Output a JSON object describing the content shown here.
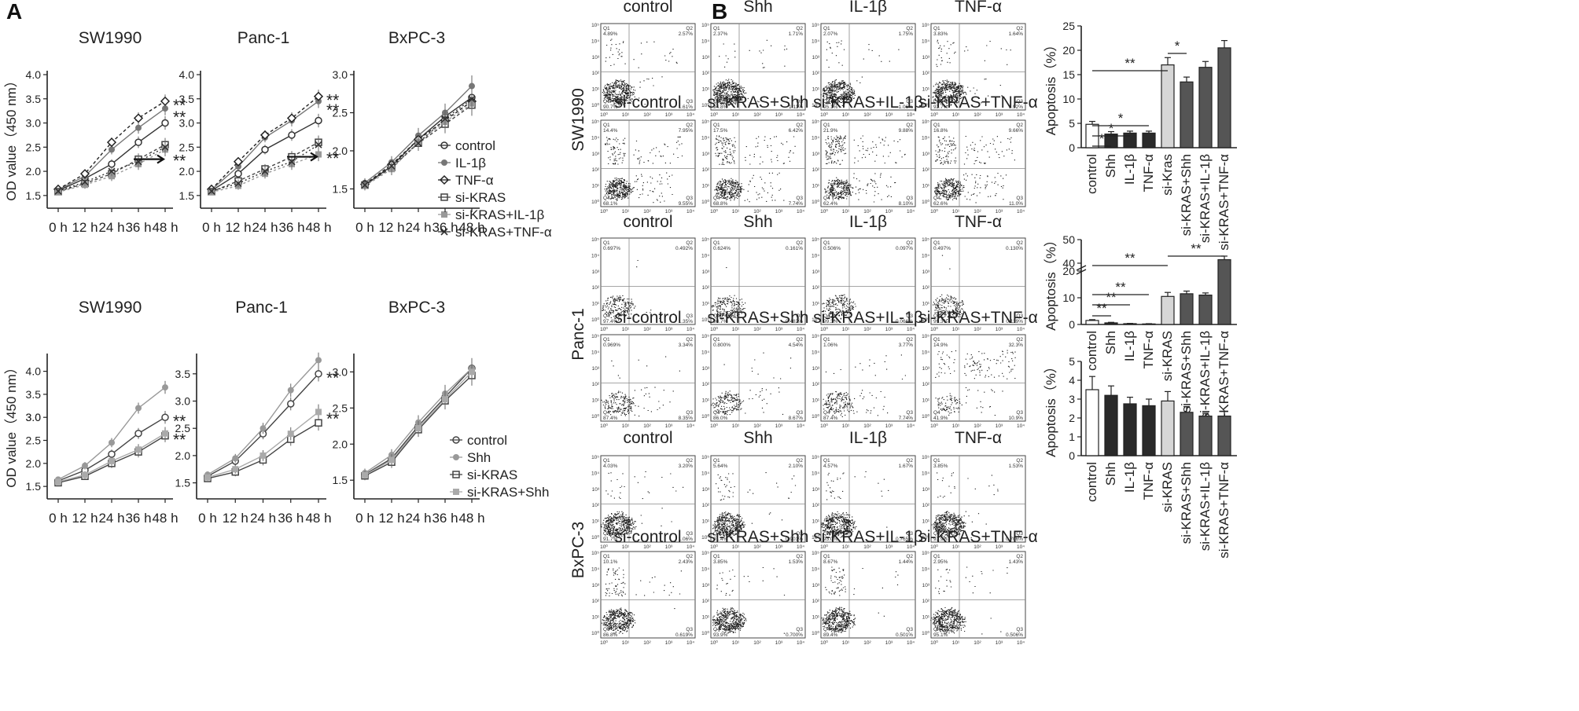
{
  "figure": {
    "panel_a": "A",
    "panel_b": "B"
  },
  "chart_data": [
    {
      "type": "line",
      "id": "a-sw1990-top",
      "title": "SW1990",
      "ylabel": "OD value（450 nm）",
      "yticks": [
        "1.5",
        "2.0",
        "2.5",
        "3.0",
        "3.5",
        "4.0"
      ],
      "ylim": [
        1.4,
        4.0
      ],
      "categories": [
        "0 h",
        "12 h",
        "24 h",
        "36 h",
        "48 h"
      ],
      "series": [
        {
          "name": "control",
          "values": [
            1.6,
            1.85,
            2.15,
            2.6,
            3.0
          ]
        },
        {
          "name": "IL-1β",
          "values": [
            1.62,
            1.9,
            2.45,
            2.9,
            3.3
          ]
        },
        {
          "name": "TNF-α",
          "values": [
            1.63,
            1.95,
            2.6,
            3.1,
            3.45
          ]
        },
        {
          "name": "si-KRAS",
          "values": [
            1.58,
            1.75,
            1.95,
            2.25,
            2.55
          ]
        },
        {
          "name": "si-KRAS+IL-1β",
          "values": [
            1.57,
            1.72,
            1.9,
            2.15,
            2.45
          ]
        },
        {
          "name": "si-KRAS+TNF-α",
          "values": [
            1.59,
            1.78,
            2.0,
            2.2,
            2.5
          ]
        }
      ],
      "annotations": [
        "**",
        "**",
        "**"
      ],
      "legend": [
        "control",
        "IL-1β",
        "TNF-α",
        "si-KRAS",
        "si-KRAS+IL-1β",
        "si-KRAS+TNF-α"
      ]
    },
    {
      "type": "line",
      "id": "a-panc1-top",
      "title": "Panc-1",
      "yticks": [
        "1.5",
        "2.0",
        "2.5",
        "3.0",
        "3.5",
        "4.0"
      ],
      "ylim": [
        1.4,
        4.0
      ],
      "categories": [
        "0 h",
        "12 h",
        "24 h",
        "36 h",
        "48 h"
      ],
      "series": [
        {
          "name": "control",
          "values": [
            1.6,
            1.95,
            2.45,
            2.75,
            3.05
          ]
        },
        {
          "name": "IL-1β",
          "values": [
            1.62,
            2.1,
            2.7,
            3.05,
            3.45
          ]
        },
        {
          "name": "TNF-α",
          "values": [
            1.63,
            2.2,
            2.75,
            3.1,
            3.55
          ]
        },
        {
          "name": "si-KRAS",
          "values": [
            1.58,
            1.8,
            2.05,
            2.3,
            2.6
          ]
        },
        {
          "name": "si-KRAS+IL-1β",
          "values": [
            1.57,
            1.7,
            1.95,
            2.15,
            2.35
          ]
        },
        {
          "name": "si-KRAS+TNF-α",
          "values": [
            1.59,
            1.75,
            2.0,
            2.2,
            2.55
          ]
        }
      ],
      "annotations": [
        "**",
        "**",
        "**"
      ]
    },
    {
      "type": "line",
      "id": "a-bxpc3-top",
      "title": "BxPC-3",
      "yticks": [
        "1.5",
        "2.0",
        "2.5",
        "3.0"
      ],
      "ylim": [
        1.35,
        3.0
      ],
      "categories": [
        "0 h",
        "12 h",
        "24 h",
        "36 h",
        "48 h"
      ],
      "series": [
        {
          "name": "control",
          "values": [
            1.55,
            1.8,
            2.15,
            2.45,
            2.7
          ]
        },
        {
          "name": "IL-1β",
          "values": [
            1.58,
            1.85,
            2.2,
            2.5,
            2.85
          ]
        },
        {
          "name": "TNF-α",
          "values": [
            1.56,
            1.82,
            2.15,
            2.4,
            2.65
          ]
        },
        {
          "name": "si-KRAS",
          "values": [
            1.55,
            1.78,
            2.1,
            2.35,
            2.6
          ]
        },
        {
          "name": "si-KRAS+IL-1β",
          "values": [
            1.54,
            1.76,
            2.12,
            2.38,
            2.62
          ]
        },
        {
          "name": "si-KRAS+TNF-α",
          "values": [
            1.55,
            1.8,
            2.1,
            2.42,
            2.68
          ]
        }
      ]
    },
    {
      "type": "line",
      "id": "a-sw1990-bottom",
      "title": "SW1990",
      "ylabel": "OD value（450 nm）",
      "yticks": [
        "1.5",
        "2.0",
        "2.5",
        "3.0",
        "3.5",
        "4.0"
      ],
      "ylim": [
        1.4,
        4.3
      ],
      "categories": [
        "0 h",
        "12 h",
        "24 h",
        "36 h",
        "48 h"
      ],
      "series": [
        {
          "name": "control",
          "values": [
            1.62,
            1.85,
            2.2,
            2.65,
            3.0
          ]
        },
        {
          "name": "Shh",
          "values": [
            1.65,
            1.95,
            2.45,
            3.2,
            3.65
          ]
        },
        {
          "name": "si-KRAS",
          "values": [
            1.58,
            1.72,
            2.0,
            2.25,
            2.6
          ]
        },
        {
          "name": "si-KRAS+Shh",
          "values": [
            1.6,
            1.75,
            2.05,
            2.3,
            2.65
          ]
        }
      ],
      "annotations": [
        "**",
        "**"
      ],
      "overlap_label": "3.0"
    },
    {
      "type": "line",
      "id": "a-panc1-bottom",
      "title": "Panc-1",
      "yticks": [
        "1.5",
        "2.0",
        "2.5",
        "3.0",
        "3.5"
      ],
      "ylim": [
        1.35,
        3.8
      ],
      "categories": [
        "0 h",
        "12 h",
        "24 h",
        "36 h",
        "48 h"
      ],
      "series": [
        {
          "name": "control",
          "values": [
            1.62,
            1.9,
            2.4,
            2.95,
            3.5
          ]
        },
        {
          "name": "Shh",
          "values": [
            1.65,
            1.95,
            2.5,
            3.2,
            3.75
          ]
        },
        {
          "name": "si-KRAS",
          "values": [
            1.58,
            1.7,
            1.92,
            2.3,
            2.6
          ]
        },
        {
          "name": "si-KRAS+Shh",
          "values": [
            1.6,
            1.75,
            2.0,
            2.4,
            2.8
          ]
        }
      ],
      "annotations": [
        "**",
        "**"
      ]
    },
    {
      "type": "line",
      "id": "a-bxpc3-bottom",
      "title": "BxPC-3",
      "yticks": [
        "1.5",
        "2.0",
        "2.5",
        "3.0"
      ],
      "ylim": [
        1.35,
        3.2
      ],
      "categories": [
        "0 h",
        "12 h",
        "24 h",
        "36 h",
        "48 h"
      ],
      "series": [
        {
          "name": "control",
          "values": [
            1.58,
            1.8,
            2.25,
            2.65,
            3.05
          ]
        },
        {
          "name": "Shh",
          "values": [
            1.6,
            1.85,
            2.3,
            2.7,
            3.05
          ]
        },
        {
          "name": "si-KRAS",
          "values": [
            1.56,
            1.75,
            2.2,
            2.6,
            2.95
          ]
        },
        {
          "name": "si-KRAS+Shh",
          "values": [
            1.57,
            1.78,
            2.22,
            2.62,
            3.0
          ]
        }
      ],
      "legend": [
        "control",
        "Shh",
        "si-KRAS",
        "si-KRAS+Shh"
      ]
    },
    {
      "type": "bar",
      "id": "b-sw1990-bars",
      "ylabel": "Apoptosis（%）",
      "yticks": [
        "0",
        "5",
        "10",
        "15",
        "20",
        "25"
      ],
      "ylim": [
        0,
        25
      ],
      "categories": [
        "control",
        "Shh",
        "IL-1β",
        "TNF-α",
        "si-Kras",
        "si-KRAS+Shh",
        "si-KRAS+IL-1β",
        "si-KRAS+TNF-α"
      ],
      "values": [
        4.8,
        2.8,
        3.0,
        3.0,
        17.0,
        13.5,
        16.5,
        20.5
      ],
      "errors": [
        0.6,
        0.5,
        0.4,
        0.4,
        1.5,
        1.0,
        1.2,
        1.5
      ],
      "fills": [
        "#ffffff",
        "#2a2a2a",
        "#2a2a2a",
        "#2a2a2a",
        "#d6d6d6",
        "#555555",
        "#555555",
        "#555555"
      ],
      "significance": [
        "*",
        "**",
        "*",
        "*",
        "*"
      ]
    },
    {
      "type": "bar",
      "id": "b-panc1-bars",
      "ylabel": "Apoptosis（%）",
      "yticks": [
        "0",
        "10",
        "20",
        "40",
        "50"
      ],
      "categories": [
        "control",
        "Shh",
        "IL-1β",
        "TNF-α",
        "si-KRAS",
        "si-KRAS+Shh",
        "si-KRAS+IL-1β",
        "si-KRAS+TNF-α"
      ],
      "values": [
        1.5,
        0.6,
        0.3,
        0.2,
        10.5,
        11.5,
        11.0,
        41.5
      ],
      "errors": [
        0.3,
        0.2,
        0.1,
        0.1,
        1.5,
        1.0,
        0.8,
        1.5
      ],
      "fills": [
        "#ffffff",
        "#2a2a2a",
        "#2a2a2a",
        "#2a2a2a",
        "#d6d6d6",
        "#555555",
        "#555555",
        "#555555"
      ],
      "significance": [
        "**",
        "**",
        "**",
        "**",
        "**"
      ]
    },
    {
      "type": "bar",
      "id": "b-bxpc3-bars",
      "ylabel": "Apoptosis（%）",
      "yticks": [
        "0",
        "1",
        "2",
        "3",
        "4",
        "5"
      ],
      "ylim": [
        0,
        5
      ],
      "categories": [
        "control",
        "Shh",
        "IL-1β",
        "TNF-α",
        "si-KRAS",
        "si-KRAS+Shh",
        "si-KRAS+IL-1β",
        "si-KRAS+TNF-α"
      ],
      "values": [
        3.5,
        3.2,
        2.75,
        2.65,
        2.9,
        2.3,
        2.1,
        2.1
      ],
      "errors": [
        0.7,
        0.5,
        0.35,
        0.35,
        0.5,
        0.3,
        0.15,
        0.25
      ],
      "fills": [
        "#ffffff",
        "#2a2a2a",
        "#2a2a2a",
        "#2a2a2a",
        "#d6d6d6",
        "#555555",
        "#555555",
        "#555555"
      ]
    }
  ],
  "flow": {
    "row_labels": [
      "SW1990",
      "Panc-1",
      "BxPC-3"
    ],
    "titles_top": [
      "control",
      "Shh",
      "IL-1β",
      "TNF-α"
    ],
    "titles_bottom": [
      "si-control",
      "si-KRAS+Shh",
      "si-KRAS+IL-1β",
      "si-KRAS+TNF-α"
    ],
    "quadrant_names": [
      "Q1",
      "Q2",
      "Q3",
      "Q4"
    ],
    "axis_ticks": [
      "10⁰",
      "10¹",
      "10²",
      "10³",
      "10⁴",
      "10⁵"
    ],
    "plots": [
      {
        "q": [
          "4.89%",
          "2.57%",
          "1.61%",
          "90.7%"
        ]
      },
      {
        "q": [
          "2.37%",
          "1.71%",
          "1.11%",
          "94.8%"
        ]
      },
      {
        "q": [
          "2.07%",
          "1.75%",
          "1.06%",
          "95.1%"
        ]
      },
      {
        "q": [
          "3.83%",
          "1.64%",
          "1.92%",
          "92.7%"
        ]
      },
      {
        "q": [
          "14.4%",
          "7.95%",
          "9.55%",
          "68.1%"
        ]
      },
      {
        "q": [
          "17.5%",
          "6.42%",
          "7.74%",
          "68.8%"
        ]
      },
      {
        "q": [
          "21.9%",
          "9.88%",
          "8.10%",
          "62.4%"
        ]
      },
      {
        "q": [
          "16.8%",
          "9.66%",
          "11.0%",
          "62.6%"
        ]
      },
      {
        "q": [
          "0.697%",
          "0.492%",
          "1.35%",
          "97.4%"
        ]
      },
      {
        "q": [
          "0.624%",
          "0.161%",
          "0.482%",
          "98.7%"
        ]
      },
      {
        "q": [
          "0.506%",
          "0.097%",
          "0.066%",
          "99.3%"
        ]
      },
      {
        "q": [
          "0.497%",
          "0.130%",
          "0.119%",
          "99.3%"
        ]
      },
      {
        "q": [
          "0.969%",
          "3.34%",
          "8.35%",
          "87.4%"
        ]
      },
      {
        "q": [
          "0.800%",
          "4.54%",
          "8.67%",
          "86.0%"
        ]
      },
      {
        "q": [
          "1.06%",
          "3.77%",
          "7.74%",
          "87.4%"
        ]
      },
      {
        "q": [
          "14.9%",
          "32.3%",
          "10.9%",
          "41.9%"
        ]
      },
      {
        "q": [
          "4.03%",
          "3.20%",
          "1.06%",
          "91.7%"
        ]
      },
      {
        "q": [
          "5.64%",
          "2.10%",
          "0.901%",
          "91.4%"
        ]
      },
      {
        "q": [
          "4.57%",
          "1.67%",
          "0.765%",
          "93.0%"
        ]
      },
      {
        "q": [
          "3.85%",
          "1.53%",
          "0.706%",
          "93.9%"
        ]
      },
      {
        "q": [
          "10.1%",
          "2.43%",
          "0.619%",
          "86.8%"
        ]
      },
      {
        "q": [
          "3.85%",
          "1.53%",
          "0.700%",
          "93.9%"
        ]
      },
      {
        "q": [
          "8.67%",
          "1.44%",
          "0.501%",
          "89.4%"
        ]
      },
      {
        "q": [
          "2.95%",
          "1.43%",
          "0.506%",
          "95.1%"
        ]
      }
    ]
  }
}
